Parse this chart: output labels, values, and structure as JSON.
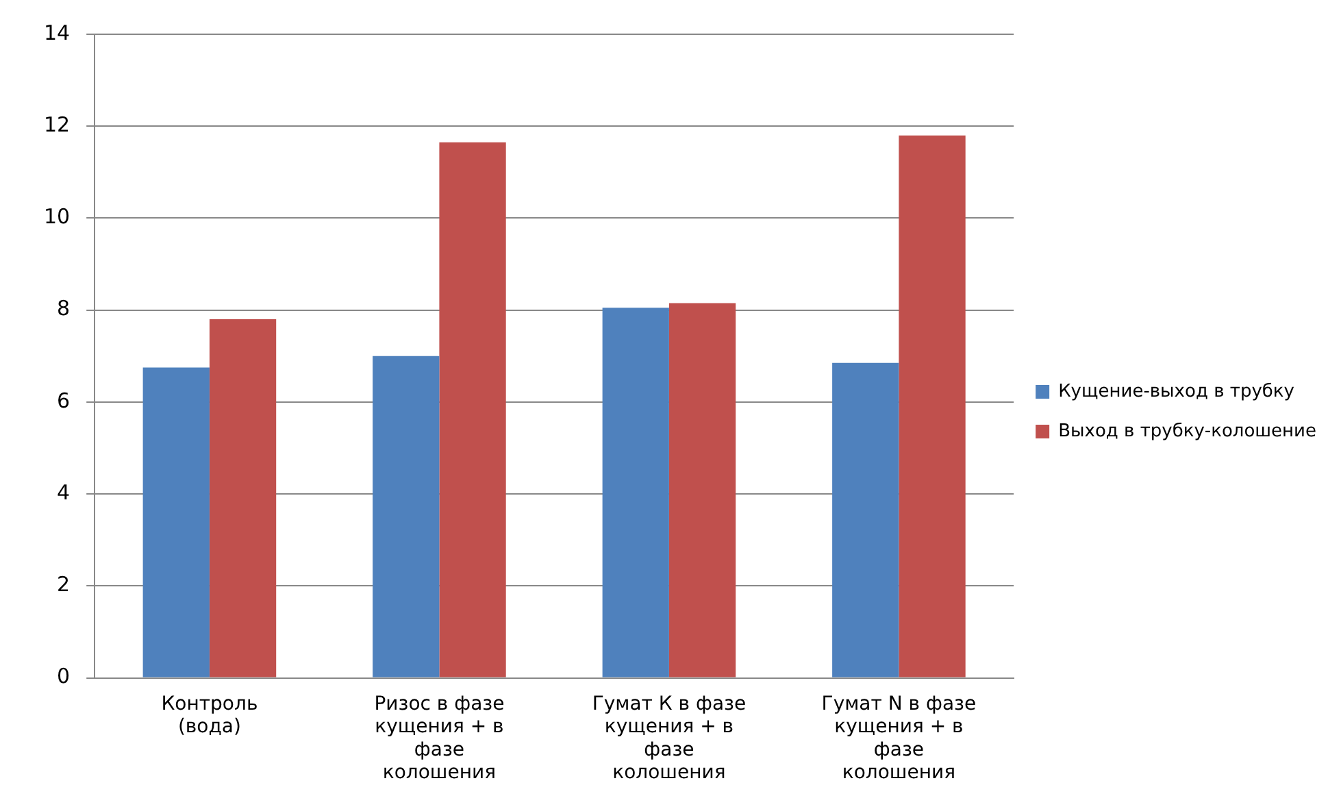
{
  "chart_data": {
    "type": "bar",
    "categories": [
      "Контроль (вода)",
      "Ризос в фазе кущения + в фазе колошения",
      "Гумат К в фазе кущения + в фазе колошения",
      "Гумат N в фазе кущения + в фазе колошения"
    ],
    "series": [
      {
        "name": "Кущение-выход в трубку",
        "color": "#4f81bd",
        "values": [
          6.75,
          7.0,
          8.05,
          6.85
        ]
      },
      {
        "name": "Выход в трубку-колошение",
        "color": "#c0504d",
        "values": [
          7.8,
          11.65,
          8.15,
          11.8
        ]
      }
    ],
    "ylim": [
      0,
      14
    ],
    "yticks": [
      0,
      2,
      4,
      6,
      8,
      10,
      12,
      14
    ],
    "grid": "y",
    "legend": "right"
  }
}
